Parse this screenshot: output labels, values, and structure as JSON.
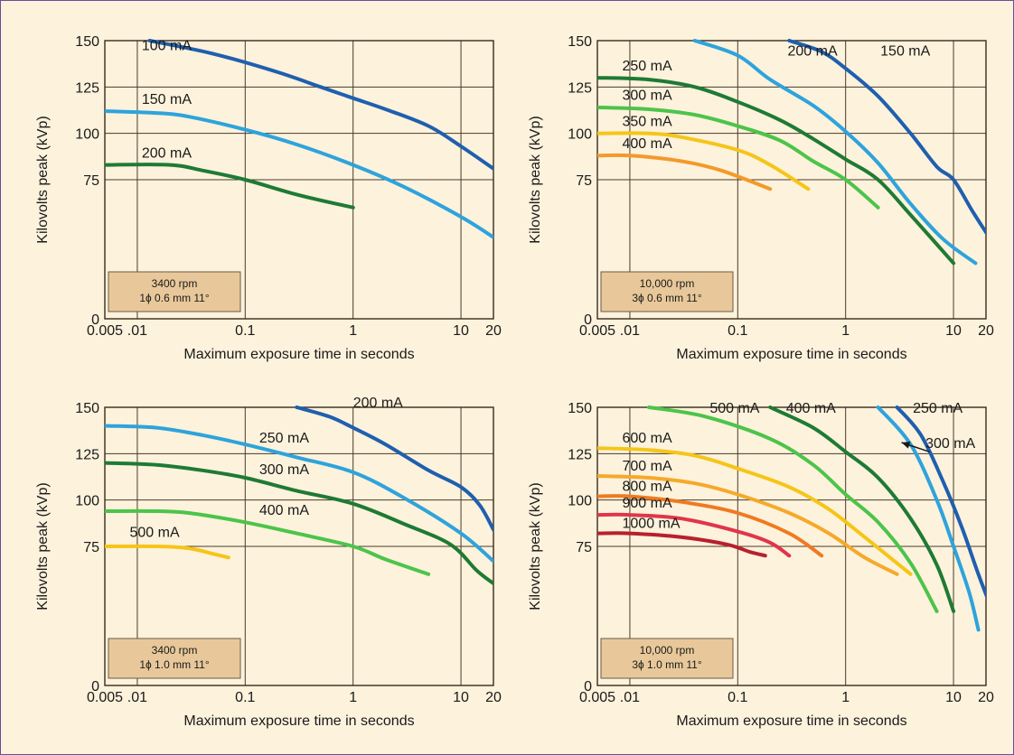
{
  "chart_data": [
    {
      "type": "line",
      "x_scale": "log",
      "xlabel": "Maximum exposure time in seconds",
      "ylabel": "Kilovolts peak (kVp)",
      "xlim": [
        0.005,
        20
      ],
      "ylim": [
        0,
        150
      ],
      "x_ticks": [
        0.005,
        0.01,
        0.1,
        1,
        10,
        20
      ],
      "x_tick_labels": [
        "0.005",
        ".01",
        "0.1",
        "1",
        "10",
        "20"
      ],
      "y_ticks": [
        0,
        75,
        100,
        125,
        150
      ],
      "y_tick_labels": [
        "0",
        "75",
        "100",
        "125",
        "150"
      ],
      "info_lines": [
        "3400 rpm",
        "1ϕ 0.6 mm 11°"
      ],
      "series": [
        {
          "name": "100 mA",
          "color": "#1f5fae",
          "points": [
            [
              0.013,
              150
            ],
            [
              0.05,
              143
            ],
            [
              0.2,
              133
            ],
            [
              0.5,
              125
            ],
            [
              1,
              119
            ],
            [
              2,
              113
            ],
            [
              5,
              104
            ],
            [
              10,
              93
            ],
            [
              20,
              81
            ]
          ]
        },
        {
          "name": "150 mA",
          "color": "#2ea3dc",
          "points": [
            [
              0.005,
              112
            ],
            [
              0.015,
              111
            ],
            [
              0.03,
              109
            ],
            [
              0.1,
              102
            ],
            [
              0.3,
              94
            ],
            [
              1,
              83
            ],
            [
              3,
              71
            ],
            [
              10,
              55
            ],
            [
              20,
              44
            ]
          ]
        },
        {
          "name": "200 mA",
          "color": "#1e7a34",
          "points": [
            [
              0.005,
              83
            ],
            [
              0.02,
              83
            ],
            [
              0.04,
              80
            ],
            [
              0.1,
              75
            ],
            [
              0.3,
              67
            ],
            [
              1,
              60
            ]
          ]
        }
      ],
      "labels": [
        {
          "text": "100 mA",
          "x": 0.011,
          "y": 145
        },
        {
          "text": "150 mA",
          "x": 0.011,
          "y": 116
        },
        {
          "text": "200 mA",
          "x": 0.011,
          "y": 87
        }
      ]
    },
    {
      "type": "line",
      "x_scale": "log",
      "xlabel": "Maximum exposure time in seconds",
      "ylabel": "Kilovolts peak (kVp)",
      "xlim": [
        0.005,
        20
      ],
      "ylim": [
        0,
        150
      ],
      "x_ticks": [
        0.005,
        0.01,
        0.1,
        1,
        10,
        20
      ],
      "x_tick_labels": [
        "0.005",
        ".01",
        "0.1",
        "1",
        "10",
        "20"
      ],
      "y_ticks": [
        0,
        75,
        100,
        125,
        150
      ],
      "y_tick_labels": [
        "0",
        "75",
        "100",
        "125",
        "150"
      ],
      "info_lines": [
        "10,000 rpm",
        "3ϕ 0.6 mm 11°"
      ],
      "series": [
        {
          "name": "150 mA",
          "color": "#1f5fae",
          "points": [
            [
              0.3,
              150
            ],
            [
              0.6,
              144
            ],
            [
              1,
              135
            ],
            [
              2,
              120
            ],
            [
              4,
              100
            ],
            [
              7,
              82
            ],
            [
              10,
              75
            ],
            [
              15,
              58
            ],
            [
              22,
              43
            ]
          ]
        },
        {
          "name": "200 mA",
          "color": "#2ea3dc",
          "points": [
            [
              0.04,
              150
            ],
            [
              0.1,
              142
            ],
            [
              0.2,
              129
            ],
            [
              0.5,
              115
            ],
            [
              1,
              101
            ],
            [
              2,
              84
            ],
            [
              4,
              62
            ],
            [
              8,
              43
            ],
            [
              16,
              30
            ]
          ]
        },
        {
          "name": "250 mA",
          "color": "#1e7a34",
          "points": [
            [
              0.005,
              130
            ],
            [
              0.015,
              129
            ],
            [
              0.04,
              125
            ],
            [
              0.1,
              117
            ],
            [
              0.25,
              107
            ],
            [
              0.5,
              97
            ],
            [
              1,
              86
            ],
            [
              2,
              75
            ],
            [
              4,
              56
            ],
            [
              10,
              30
            ]
          ]
        },
        {
          "name": "300 mA",
          "color": "#4cc44a",
          "points": [
            [
              0.005,
              114
            ],
            [
              0.015,
              113
            ],
            [
              0.04,
              110
            ],
            [
              0.1,
              104
            ],
            [
              0.25,
              96
            ],
            [
              0.5,
              85
            ],
            [
              1,
              75
            ],
            [
              2,
              60
            ]
          ]
        },
        {
          "name": "350 mA",
          "color": "#f5c518",
          "points": [
            [
              0.005,
              100
            ],
            [
              0.015,
              100
            ],
            [
              0.03,
              98
            ],
            [
              0.1,
              91
            ],
            [
              0.2,
              83
            ],
            [
              0.45,
              70
            ]
          ]
        },
        {
          "name": "400 mA",
          "color": "#f39a2a",
          "points": [
            [
              0.005,
              88
            ],
            [
              0.01,
              88
            ],
            [
              0.03,
              85
            ],
            [
              0.07,
              80
            ],
            [
              0.2,
              70
            ]
          ]
        }
      ],
      "labels": [
        {
          "text": "200 mA",
          "x": 0.29,
          "y": 142
        },
        {
          "text": "150 mA",
          "x": 2.1,
          "y": 142
        },
        {
          "text": "250 mA",
          "x": 0.0085,
          "y": 134
        },
        {
          "text": "300 mA",
          "x": 0.0085,
          "y": 118
        },
        {
          "text": "350 mA",
          "x": 0.0085,
          "y": 104
        },
        {
          "text": "400 mA",
          "x": 0.0085,
          "y": 92
        }
      ]
    },
    {
      "type": "line",
      "x_scale": "log",
      "xlabel": "Maximum exposure time in seconds",
      "ylabel": "Kilovolts peak (kVp)",
      "xlim": [
        0.005,
        20
      ],
      "ylim": [
        0,
        150
      ],
      "x_ticks": [
        0.005,
        0.01,
        0.1,
        1,
        10,
        20
      ],
      "x_tick_labels": [
        "0.005",
        ".01",
        "0.1",
        "1",
        "10",
        "20"
      ],
      "y_ticks": [
        0,
        75,
        100,
        125,
        150
      ],
      "y_tick_labels": [
        "0",
        "75",
        "100",
        "125",
        "150"
      ],
      "info_lines": [
        "3400 rpm",
        "1ϕ 1.0 mm 11°"
      ],
      "series": [
        {
          "name": "200 mA",
          "color": "#1f5fae",
          "points": [
            [
              0.3,
              150
            ],
            [
              0.6,
              145
            ],
            [
              1,
              139
            ],
            [
              2,
              130
            ],
            [
              5,
              116
            ],
            [
              10,
              107
            ],
            [
              15,
              97
            ],
            [
              20,
              84
            ]
          ]
        },
        {
          "name": "250 mA",
          "color": "#2ea3dc",
          "points": [
            [
              0.005,
              140
            ],
            [
              0.015,
              139
            ],
            [
              0.04,
              135
            ],
            [
              0.1,
              130
            ],
            [
              0.3,
              123
            ],
            [
              1,
              115
            ],
            [
              3,
              101
            ],
            [
              10,
              82
            ],
            [
              20,
              67
            ]
          ]
        },
        {
          "name": "300 mA",
          "color": "#1e7a34",
          "points": [
            [
              0.005,
              120
            ],
            [
              0.015,
              119
            ],
            [
              0.04,
              116
            ],
            [
              0.1,
              112
            ],
            [
              0.3,
              105
            ],
            [
              1,
              98
            ],
            [
              3,
              87
            ],
            [
              8,
              76
            ],
            [
              14,
              62
            ],
            [
              20,
              55
            ]
          ]
        },
        {
          "name": "400 mA",
          "color": "#4cc44a",
          "points": [
            [
              0.005,
              94
            ],
            [
              0.015,
              94
            ],
            [
              0.03,
              93
            ],
            [
              0.1,
              88
            ],
            [
              0.3,
              82
            ],
            [
              1,
              75
            ],
            [
              2,
              68
            ],
            [
              5,
              60
            ]
          ]
        },
        {
          "name": "500 mA",
          "color": "#f5c518",
          "points": [
            [
              0.005,
              75
            ],
            [
              0.015,
              75
            ],
            [
              0.03,
              74
            ],
            [
              0.05,
              71
            ],
            [
              0.07,
              69
            ]
          ]
        }
      ],
      "labels": [
        {
          "text": "200 mA",
          "x": 1.0,
          "y": 150
        },
        {
          "text": "250 mA",
          "x": 0.135,
          "y": 131
        },
        {
          "text": "300 mA",
          "x": 0.135,
          "y": 114
        },
        {
          "text": "400 mA",
          "x": 0.135,
          "y": 92
        },
        {
          "text": "500 mA",
          "x": 0.0085,
          "y": 80
        }
      ]
    },
    {
      "type": "line",
      "x_scale": "log",
      "xlabel": "Maximum exposure time in seconds",
      "ylabel": "Kilovolts peak (kVp)",
      "xlim": [
        0.005,
        20
      ],
      "ylim": [
        0,
        150
      ],
      "x_ticks": [
        0.005,
        0.01,
        0.1,
        1,
        10,
        20
      ],
      "x_tick_labels": [
        "0.005",
        ".01",
        "0.1",
        "1",
        "10",
        "20"
      ],
      "y_ticks": [
        0,
        75,
        100,
        125,
        150
      ],
      "y_tick_labels": [
        "0",
        "75",
        "100",
        "125",
        "150"
      ],
      "info_lines": [
        "10,000 rpm",
        "3ϕ 1.0 mm 11°"
      ],
      "series": [
        {
          "name": "250 mA",
          "color": "#1f5fae",
          "points": [
            [
              3,
              150
            ],
            [
              5,
              135
            ],
            [
              8,
              110
            ],
            [
              12,
              85
            ],
            [
              17,
              60
            ],
            [
              22,
              43
            ]
          ]
        },
        {
          "name": "300 mA",
          "color": "#2ea3dc",
          "points": [
            [
              2,
              150
            ],
            [
              4,
              130
            ],
            [
              7,
              100
            ],
            [
              10,
              75
            ],
            [
              14,
              50
            ],
            [
              17,
              30
            ]
          ]
        },
        {
          "name": "400 mA",
          "color": "#1e7a34",
          "points": [
            [
              0.2,
              150
            ],
            [
              0.5,
              139
            ],
            [
              1,
              126
            ],
            [
              2,
              112
            ],
            [
              4,
              90
            ],
            [
              7,
              65
            ],
            [
              10,
              40
            ]
          ]
        },
        {
          "name": "500 mA",
          "color": "#4cc44a",
          "points": [
            [
              0.015,
              150
            ],
            [
              0.05,
              145
            ],
            [
              0.2,
              133
            ],
            [
              0.5,
              119
            ],
            [
              1,
              103
            ],
            [
              2,
              88
            ],
            [
              4,
              66
            ],
            [
              7,
              40
            ]
          ]
        },
        {
          "name": "600 mA",
          "color": "#f5c518",
          "points": [
            [
              0.005,
              128
            ],
            [
              0.015,
              127
            ],
            [
              0.04,
              124
            ],
            [
              0.1,
              117
            ],
            [
              0.3,
              107
            ],
            [
              0.7,
              95
            ],
            [
              1.5,
              80
            ],
            [
              4,
              60
            ]
          ]
        },
        {
          "name": "700 mA",
          "color": "#f5a92a",
          "points": [
            [
              0.005,
              113
            ],
            [
              0.015,
              112
            ],
            [
              0.04,
              109
            ],
            [
              0.1,
              103
            ],
            [
              0.3,
              93
            ],
            [
              0.7,
              82
            ],
            [
              1.5,
              69
            ],
            [
              3,
              60
            ]
          ]
        },
        {
          "name": "800 mA",
          "color": "#ef7a22",
          "points": [
            [
              0.005,
              102
            ],
            [
              0.01,
              102
            ],
            [
              0.03,
              99
            ],
            [
              0.1,
              93
            ],
            [
              0.3,
              82
            ],
            [
              0.6,
              70
            ]
          ]
        },
        {
          "name": "900 mA",
          "color": "#e0354a",
          "points": [
            [
              0.005,
              92
            ],
            [
              0.01,
              92
            ],
            [
              0.03,
              90
            ],
            [
              0.1,
              83
            ],
            [
              0.2,
              77
            ],
            [
              0.3,
              70
            ]
          ]
        },
        {
          "name": "1000 mA",
          "color": "#b8202e",
          "points": [
            [
              0.005,
              82
            ],
            [
              0.01,
              82
            ],
            [
              0.03,
              80
            ],
            [
              0.08,
              76
            ],
            [
              0.13,
              72
            ],
            [
              0.18,
              70
            ]
          ]
        }
      ],
      "labels": [
        {
          "text": "500 mA",
          "x": 0.055,
          "y": 147
        },
        {
          "text": "400 mA",
          "x": 0.28,
          "y": 147
        },
        {
          "text": "250 mA",
          "x": 4.2,
          "y": 147
        },
        {
          "text": "300 mA",
          "x": 5.5,
          "y": 128
        },
        {
          "text": "600 mA",
          "x": 0.0085,
          "y": 131
        },
        {
          "text": "700 mA",
          "x": 0.0085,
          "y": 116
        },
        {
          "text": "800 mA",
          "x": 0.0085,
          "y": 105
        },
        {
          "text": "900 mA",
          "x": 0.0085,
          "y": 96
        },
        {
          "text": "1000 mA",
          "x": 0.0085,
          "y": 85
        }
      ],
      "arrow": {
        "from_x": 6.0,
        "from_y": 126,
        "to_x": 3.3,
        "to_y": 131
      }
    }
  ]
}
